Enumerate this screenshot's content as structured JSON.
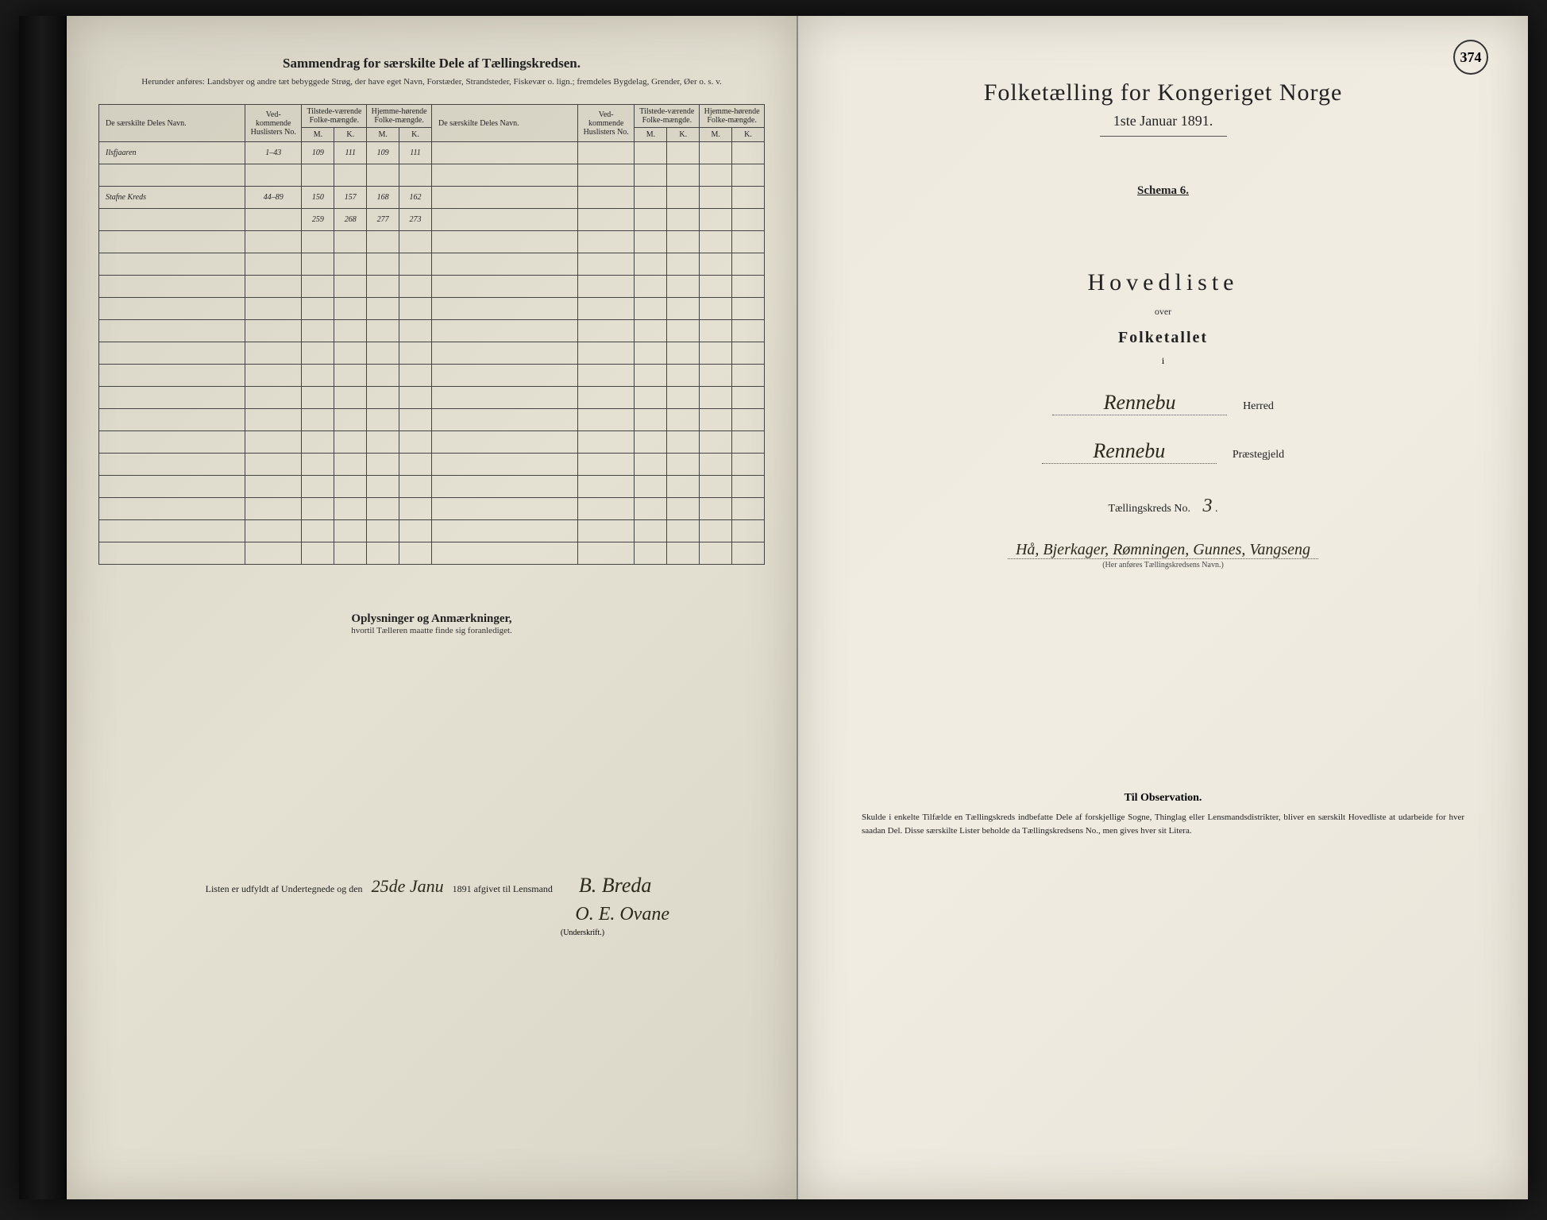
{
  "page_number": "374",
  "colors": {
    "paper_left": "#dad6c8",
    "paper_right": "#eeeae0",
    "ink": "#222222",
    "handwriting": "#2a2a1a",
    "border": "#444444",
    "background": "#1a1a1a"
  },
  "left_page": {
    "title": "Sammendrag for særskilte Dele af Tællingskredsen.",
    "subtitle": "Herunder anføres: Landsbyer og andre tæt bebyggede Strøg, der have eget Navn, Forstæder, Strandsteder, Fiskevær o. lign.; fremdeles Bygdelag, Grender, Øer o. s. v.",
    "table": {
      "headers": {
        "name": "De særskilte Deles Navn.",
        "huslister": "Ved-kommende Huslisters No.",
        "tilstede": "Tilstede-værende Folke-mængde.",
        "hjemme": "Hjemme-hørende Folke-mængde.",
        "m": "M.",
        "k": "K."
      },
      "rows": [
        {
          "name": "Ilsfjaaren",
          "huslister": "1–43",
          "tm": "109",
          "tk": "111",
          "hm": "109",
          "hk": "111"
        },
        {
          "name": "Stafne Kreds",
          "huslister": "44–89",
          "tm": "150",
          "tk": "157",
          "hm": "168",
          "hk": "162"
        }
      ],
      "totals": {
        "tm": "259",
        "tk": "268",
        "hm": "277",
        "hk": "273"
      },
      "blank_row_count": 15
    },
    "remarks_title": "Oplysninger og Anmærkninger,",
    "remarks_sub": "hvortil Tælleren maatte finde sig foranlediget.",
    "footer_prefix": "Listen er udfyldt af Undertegnede og den",
    "footer_date": "25de Janu",
    "footer_year": "1891 afgivet til Lensmand",
    "signature1": "B. Breda",
    "signature2": "O. E. Ovane",
    "underskrift_label": "(Underskrift.)"
  },
  "right_page": {
    "title": "Folketælling for Kongeriget Norge",
    "date": "1ste Januar 1891.",
    "schema": "Schema 6.",
    "hovedliste": "Hovedliste",
    "over": "over",
    "folketallet": "Folketallet",
    "i": "i",
    "herred_value": "Rennebu",
    "herred_label": "Herred",
    "prestegjeld_value": "Rennebu",
    "prestegjeld_label": "Præstegjeld",
    "kreds_prefix": "Tællingskreds No.",
    "kreds_no": "3",
    "kreds_name": "Hå, Bjerkager, Rømningen, Gunnes, Vangseng",
    "kreds_caption": "(Her anføres Tællingskredsens Navn.)",
    "observation_title": "Til Observation.",
    "observation_body": "Skulde i enkelte Tilfælde en Tællingskreds indbefatte Dele af forskjellige Sogne, Thinglag eller Lensmandsdistrikter, bliver en særskilt Hovedliste at udarbeide for hver saadan Del. Disse særskilte Lister beholde da Tællingskredsens No., men gives hver sit Litera."
  }
}
